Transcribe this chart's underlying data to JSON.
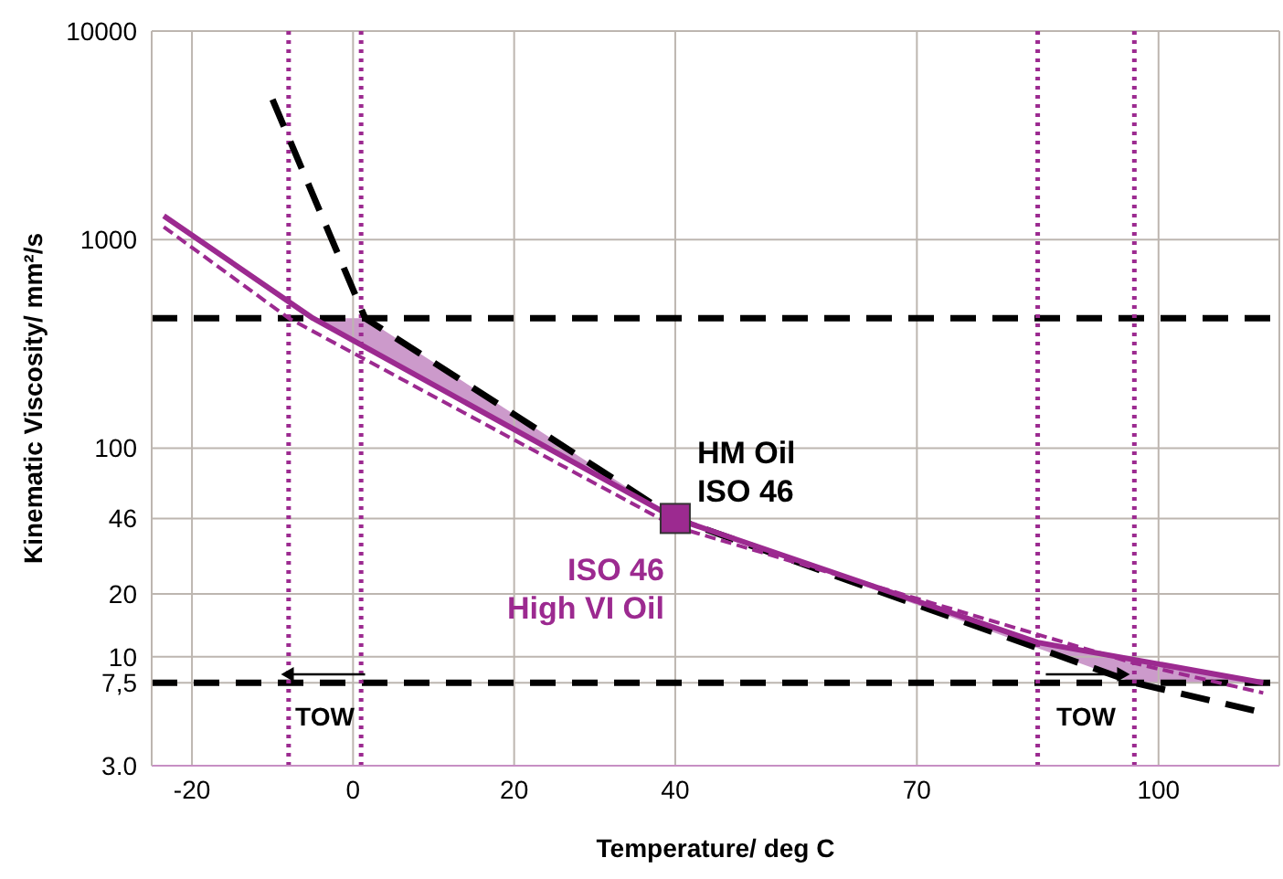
{
  "chart_data": {
    "type": "line",
    "xlabel": "Temperature/ deg C",
    "ylabel": "Kinematic Viscosity/ mm²/s",
    "xlim": [
      -25,
      115
    ],
    "xticks": [
      -20,
      0,
      20,
      40,
      70,
      100
    ],
    "ylim": [
      3,
      10000
    ],
    "yticks": [
      {
        "value": 3,
        "label": "3.0"
      },
      {
        "value": 7.5,
        "label": "7,5"
      },
      10,
      20,
      46,
      100,
      1000,
      10000
    ],
    "log": "y",
    "grid": true,
    "series": [
      {
        "color": "#000000",
        "line_style": "dashed",
        "x": [
          -10,
          1.5,
          40,
          97,
          112
        ],
        "values": [
          4700,
          420,
          46,
          7.5,
          5.5
        ]
      },
      {
        "color": "#9c2a90",
        "line_style": "solid",
        "x": [
          -23.5,
          -5,
          40,
          85,
          113
        ],
        "values": [
          1300,
          420,
          46,
          11.7,
          7.5
        ]
      },
      {
        "color": "#9c2a90",
        "line_style": "dashed",
        "x": [
          -23.5,
          -8,
          40,
          97,
          113
        ],
        "values": [
          1150,
          420,
          42,
          9.3,
          6.7
        ]
      },
      {
        "type": "scatter",
        "color": "#9c2a90",
        "marker": "square",
        "x": [
          40
        ],
        "values": [
          46
        ]
      }
    ],
    "ref_lines": [
      {
        "axis": "y",
        "value": 420,
        "color": "#000000",
        "line_style": "dashed"
      },
      {
        "axis": "y",
        "value": 7.5,
        "color": "#000000",
        "line_style": "dashed"
      },
      {
        "axis": "x",
        "value": -8,
        "color": "#9c2a90",
        "line_style": "dotted"
      },
      {
        "axis": "x",
        "value": 1,
        "color": "#9c2a90",
        "line_style": "dotted"
      },
      {
        "axis": "x",
        "value": 85,
        "color": "#9c2a90",
        "line_style": "dotted"
      },
      {
        "axis": "x",
        "value": 97,
        "color": "#9c2a90",
        "line_style": "dotted"
      }
    ],
    "annotations": [
      "HM Oil\nISO 46",
      "ISO 46\nHigh VI Oil",
      "TOW",
      "TOW"
    ]
  }
}
